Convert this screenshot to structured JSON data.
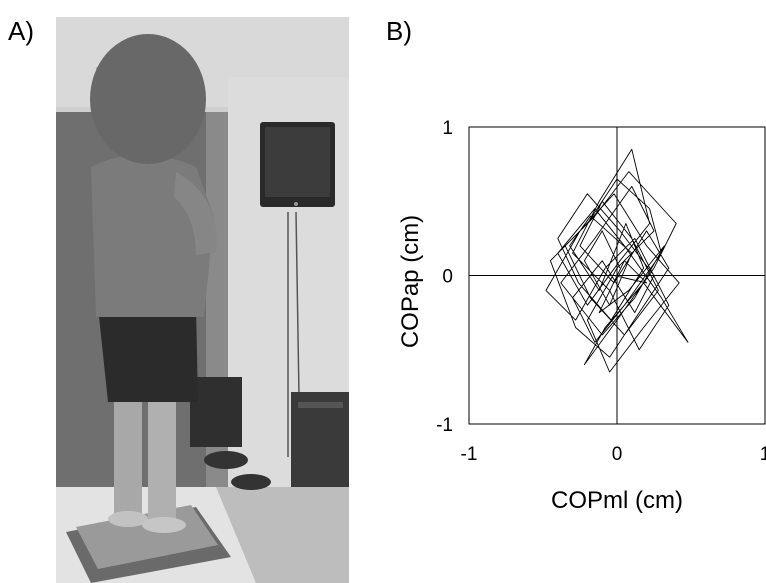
{
  "figure": {
    "panel_a_label": "A)",
    "panel_b_label": "B)"
  },
  "photo": {
    "subject": "person standing on force platform, face obscured, monitor on wall"
  },
  "chart_data": {
    "type": "line",
    "xlabel": "COPml (cm)",
    "ylabel": "COPap (cm)",
    "xlim": [
      -1,
      1
    ],
    "ylim": [
      -1,
      1
    ],
    "x_ticks": [
      "-1",
      "0",
      "1"
    ],
    "y_ticks": [
      "1",
      "0",
      "-1"
    ],
    "grid": false,
    "zero_lines": true,
    "series": [
      {
        "x": [
          0.02,
          -0.1,
          -0.22,
          -0.05,
          0.1,
          -0.18,
          -0.32,
          -0.12,
          0.06,
          0.18,
          -0.04,
          -0.26,
          -0.4,
          -0.2,
          0.02,
          0.25,
          0.12,
          -0.1,
          -0.3,
          -0.15,
          0.05,
          0.3,
          0.22,
          0.0,
          -0.2,
          -0.45,
          -0.28,
          -0.05,
          0.15,
          0.35,
          0.2,
          -0.02,
          -0.25,
          -0.1,
          0.1,
          0.28,
          0.05,
          -0.18,
          -0.35,
          -0.15,
          0.08,
          0.4,
          0.25,
          0.0,
          -0.22,
          -0.08,
          0.18,
          0.48,
          0.3,
          0.05,
          -0.15,
          -0.4,
          -0.2,
          0.02,
          0.22,
          0.1,
          -0.12,
          -0.3,
          -0.05,
          0.15,
          0.35,
          0.12,
          -0.08,
          -0.28,
          -0.48,
          -0.25,
          -0.02,
          0.2,
          0.42,
          0.18,
          -0.05,
          -0.2,
          0.0,
          0.25,
          0.1,
          -0.15,
          -0.38,
          -0.1,
          0.12,
          0.32,
          0.08,
          -0.12,
          0.05,
          0.2,
          -0.02
        ],
        "y": [
          0.05,
          0.3,
          0.1,
          -0.2,
          0.15,
          0.4,
          0.2,
          -0.1,
          0.35,
          0.05,
          -0.3,
          -0.05,
          0.25,
          0.55,
          0.3,
          0.0,
          -0.25,
          0.1,
          -0.15,
          -0.45,
          -0.2,
          0.15,
          0.45,
          0.65,
          0.35,
          0.1,
          -0.35,
          -0.55,
          -0.25,
          0.05,
          0.3,
          -0.05,
          0.2,
          0.5,
          0.25,
          -0.1,
          -0.4,
          -0.15,
          0.2,
          0.4,
          0.7,
          0.35,
          0.05,
          -0.3,
          -0.6,
          -0.35,
          -0.05,
          -0.45,
          -0.15,
          0.2,
          0.45,
          0.15,
          -0.2,
          0.1,
          0.35,
          0.85,
          0.5,
          0.15,
          -0.1,
          -0.5,
          -0.2,
          0.25,
          0.05,
          -0.3,
          -0.1,
          0.3,
          0.55,
          0.2,
          -0.05,
          -0.35,
          -0.65,
          -0.3,
          0.05,
          0.3,
          0.6,
          0.25,
          -0.05,
          -0.4,
          -0.15,
          0.2,
          -0.1,
          -0.25,
          0.1,
          -0.05,
          0.0
        ]
      }
    ]
  }
}
